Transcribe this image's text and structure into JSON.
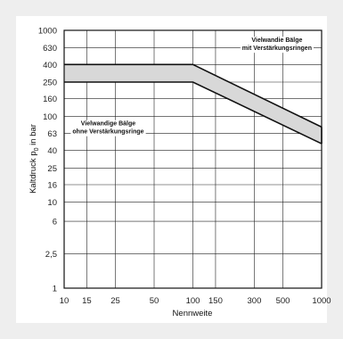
{
  "chart_data": {
    "type": "area",
    "x_scale": "log",
    "y_scale": "log",
    "xlabel": "Nennweite",
    "ylabel_main": "Kaltdruck p",
    "ylabel_sub": "0",
    "ylabel_unit": " in bar",
    "x_ticks": [
      10,
      15,
      25,
      50,
      100,
      150,
      300,
      500,
      1000
    ],
    "x_tick_labels": [
      "10",
      "15",
      "25",
      "50",
      "100",
      "150",
      "300",
      "500",
      "1000"
    ],
    "y_ticks": [
      1,
      2.5,
      6,
      10,
      16,
      25,
      40,
      63,
      100,
      160,
      250,
      400,
      630,
      1000
    ],
    "y_tick_labels": [
      "1",
      "2,5",
      "6",
      "10",
      "16",
      "25",
      "40",
      "63",
      "100",
      "160",
      "250",
      "400",
      "630",
      "1000"
    ],
    "xlim": [
      10,
      1000
    ],
    "ylim": [
      1,
      1000
    ],
    "grid": true,
    "series": [
      {
        "x": [
          10,
          100,
          1000
        ],
        "y": [
          400,
          400,
          75
        ]
      },
      {
        "x": [
          10,
          100,
          1000
        ],
        "y": [
          250,
          250,
          48
        ]
      }
    ],
    "annotations": [
      {
        "lines": [
          "Vielwandie Bälge",
          "mit Verstärkungsringen"
        ],
        "x": 450,
        "y": 730
      },
      {
        "lines": [
          "Vielwandige Bälge",
          "ohne Verstärkungsringe"
        ],
        "x": 22,
        "y": 78
      }
    ],
    "fill_color": "#d8d8d8",
    "line_color": "#111111",
    "grid_color": "#222222",
    "background": "#ffffff"
  }
}
